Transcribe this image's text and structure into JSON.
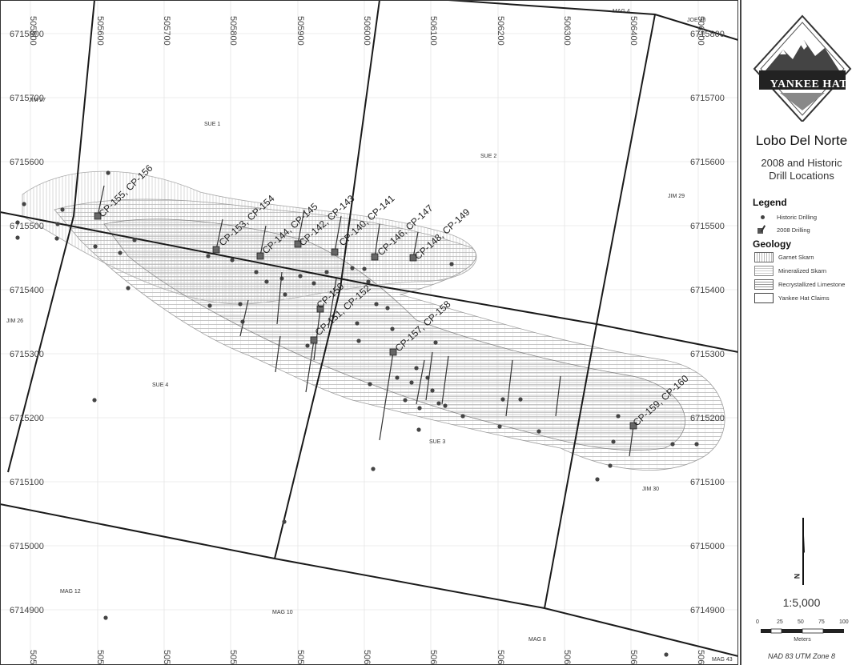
{
  "map": {
    "easting_ticks": [
      "505500",
      "505600",
      "505700",
      "505800",
      "505900",
      "506000",
      "506100",
      "506200",
      "506300",
      "506400",
      "506500"
    ],
    "northing_ticks": [
      "6715800",
      "6715700",
      "6715600",
      "6715500",
      "6715400",
      "6715300",
      "6715200",
      "6715100",
      "6715000",
      "6714900"
    ],
    "claim_labels": [
      "SUE 1",
      "SUE 2",
      "SUE 3",
      "SUE 4",
      "JIM 26",
      "JIM 27",
      "JIM 29",
      "JIM 30",
      "MAG 4",
      "MAG 8",
      "MAG 10",
      "MAG 12",
      "MAG 43",
      "JOE 30"
    ],
    "drill_labels": [
      "CP-155, CP-156",
      "CP-153, CP-154",
      "CP-144, CP-145",
      "CP-142, CP-143",
      "CP-140, CP-141",
      "CP-146, CP-147",
      "CP-148, CP-149",
      "CP-150",
      "CP-151, CP-152",
      "CP-157, CP-158",
      "CP-159, CP-160"
    ]
  },
  "panel": {
    "company": "YANKEE HAT",
    "title": "Lobo Del Norte",
    "subtitle_line1": "2008 and Historic",
    "subtitle_line2": "Drill Locations",
    "legend_heading": "Legend",
    "legend_historic": "Historic Drilling",
    "legend_2008": "2008 Drilling",
    "geology_heading": "Geology",
    "geology_items": [
      "Garnet Skarn",
      "Mineralized Skarn",
      "Recrystallized Limestone",
      "Yankee Hat Claims"
    ],
    "north_label": "N",
    "scale_ratio": "1:5,000",
    "scale_ticks": [
      "0",
      "25",
      "50",
      "75",
      "100"
    ],
    "scale_unit": "Meters",
    "projection": "NAD 83 UTM Zone 8"
  },
  "colors": {
    "line": "#222222",
    "hatch": "#b8b8b8",
    "hole": "#444444",
    "background": "#ffffff"
  }
}
